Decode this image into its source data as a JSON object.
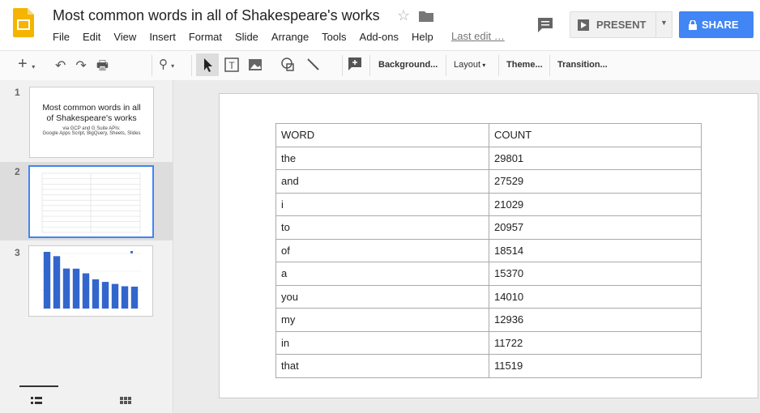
{
  "header": {
    "title": "Most common words in all of Shakespeare's works",
    "menu": [
      "File",
      "Edit",
      "View",
      "Insert",
      "Format",
      "Slide",
      "Arrange",
      "Tools",
      "Add-ons",
      "Help"
    ],
    "last_edit": "Last edit …",
    "present": "PRESENT",
    "share": "SHARE"
  },
  "toolbar": {
    "buttons": [
      "Background...",
      "Layout",
      "Theme...",
      "Transition..."
    ]
  },
  "slides_panel": {
    "numbers": [
      "1",
      "2",
      "3"
    ],
    "slide1": {
      "title": "Most common words in all of Shakespeare's works",
      "subtitle": "via GCP and G Suite APIs:",
      "detail": "Google Apps Script, BigQuery, Sheets, Slides"
    }
  },
  "table": {
    "header": [
      "WORD",
      "COUNT"
    ],
    "rows": [
      [
        "the",
        29801
      ],
      [
        "and",
        27529
      ],
      [
        "i",
        21029
      ],
      [
        "to",
        20957
      ],
      [
        "of",
        18514
      ],
      [
        "a",
        15370
      ],
      [
        "you",
        14010
      ],
      [
        "my",
        12936
      ],
      [
        "in",
        11722
      ],
      [
        "that",
        11519
      ]
    ]
  }
}
